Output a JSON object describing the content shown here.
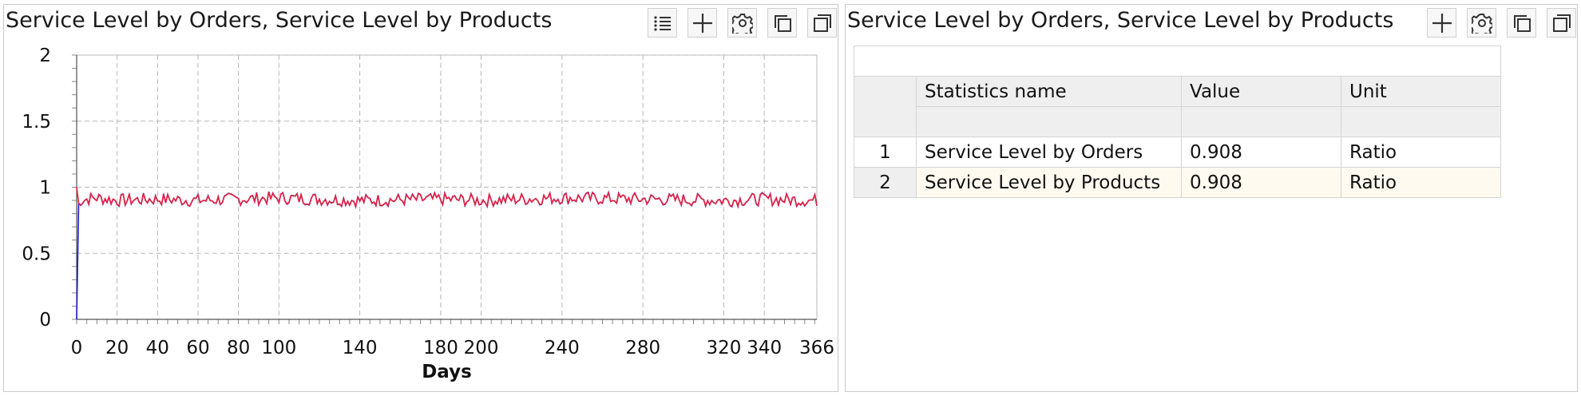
{
  "left_panel": {
    "title": "Service Level by Orders, Service Level by Products",
    "toolbar": [
      "list-icon",
      "plus-icon",
      "gear-icon",
      "copy-icon",
      "maximize-icon"
    ]
  },
  "right_panel": {
    "title": "Service Level by Orders, Service Level by Products",
    "toolbar": [
      "plus-icon",
      "gear-icon",
      "copy-icon",
      "maximize-icon"
    ],
    "table": {
      "headers": [
        "Statistics name",
        "Value",
        "Unit"
      ],
      "rows": [
        {
          "index": "1",
          "name": "Service Level by Orders",
          "value": "0.908",
          "unit": "Ratio"
        },
        {
          "index": "2",
          "name": "Service Level by Products",
          "value": "0.908",
          "unit": "Ratio"
        }
      ]
    }
  },
  "chart_data": {
    "type": "line",
    "xlabel": "Days",
    "ylabel": "",
    "xlim": [
      0,
      366
    ],
    "ylim": [
      0,
      2
    ],
    "x_ticks": [
      "0",
      "20",
      "40",
      "60",
      "80",
      "100",
      "140",
      "180",
      "200",
      "240",
      "280",
      "320",
      "340",
      "366"
    ],
    "y_ticks": [
      "0",
      "0.5",
      "1",
      "1.5",
      "2"
    ],
    "grid": true,
    "colors": {
      "orders": "#1a1ad6",
      "products": "#e8213a"
    },
    "series": [
      {
        "key": "orders",
        "x": [
          0,
          1,
          2,
          5,
          10,
          20,
          40,
          60,
          80,
          100,
          140,
          180,
          200,
          240,
          280,
          320,
          340,
          366
        ],
        "values": [
          0.0,
          0.88,
          0.9,
          0.91,
          0.92,
          0.9,
          0.91,
          0.9,
          0.91,
          0.92,
          0.9,
          0.91,
          0.9,
          0.92,
          0.91,
          0.9,
          0.91,
          0.9
        ]
      },
      {
        "key": "products",
        "x": [
          0,
          1,
          2,
          5,
          10,
          20,
          40,
          60,
          80,
          100,
          140,
          180,
          200,
          240,
          280,
          320,
          340,
          366
        ],
        "values": [
          1.0,
          0.88,
          0.9,
          0.91,
          0.92,
          0.9,
          0.91,
          0.9,
          0.91,
          0.92,
          0.9,
          0.91,
          0.9,
          0.92,
          0.91,
          0.9,
          0.91,
          0.9
        ]
      }
    ],
    "noise_amplitude": 0.05
  }
}
